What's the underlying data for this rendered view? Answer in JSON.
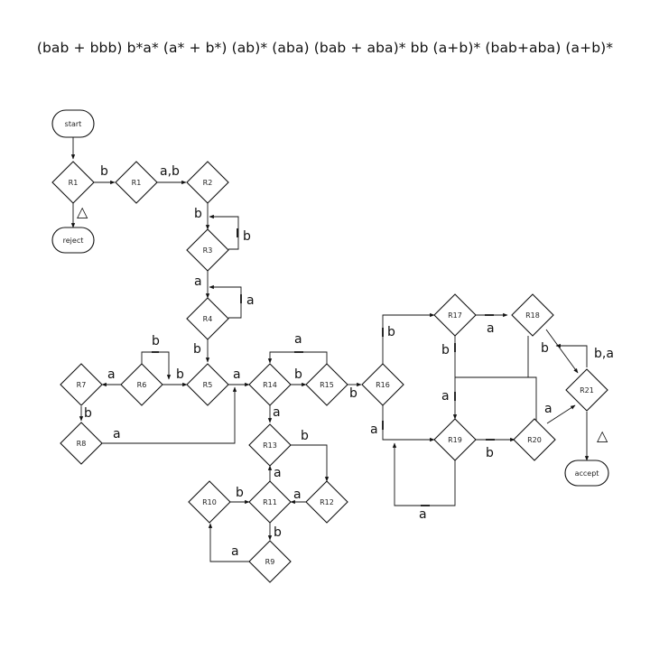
{
  "title": "(bab + bbb) b*a* (a* + b*) (ab)* (aba) (bab + aba)* bb (a+b)* (bab+aba) (a+b)*",
  "nodes": {
    "start": "start",
    "reject": "reject",
    "accept": "accept",
    "R1a": "R1",
    "R1b": "R1",
    "R2": "R2",
    "R3": "R3",
    "R4": "R4",
    "R5": "R5",
    "R6": "R6",
    "R7": "R7",
    "R8": "R8",
    "R9": "R9",
    "R10": "R10",
    "R11": "R11",
    "R12": "R12",
    "R13": "R13",
    "R14": "R14",
    "R15": "R15",
    "R16": "R16",
    "R17": "R17",
    "R18": "R18",
    "R19": "R19",
    "R20": "R20",
    "R21": "R21"
  },
  "edge_labels": {
    "r1a_r1b": "b",
    "r1b_r2": "a,b",
    "r2_r3": "b",
    "r3_loop": "b",
    "r3_r4": "a",
    "r4_loop": "a",
    "r4_r5": "b",
    "r6_loop": "b",
    "r6_r5": "b",
    "r6_r7": "a",
    "r7_r8": "b",
    "r8_r5": "a",
    "r5_r14": "a",
    "r14_r15": "b",
    "r15_loop": "a",
    "r15_r16": "b",
    "r14_r13": "a",
    "r13_r12": "b",
    "r12_r11": "a",
    "r11_r13": "a",
    "r10_r11": "b",
    "r11_r9": "b",
    "r9_r10": "a",
    "r16_r17": "b",
    "r16_r19": "a",
    "r17_r18": "a",
    "r17_r19": "b",
    "r19_loop_a": "a",
    "r19_loop_bottom": "a",
    "r19_r20": "b",
    "r18_r21": "b",
    "r21_loop": "b,a",
    "r20_r21": "a"
  },
  "annotations": {
    "reject_marker": "△",
    "accept_marker": "△"
  }
}
